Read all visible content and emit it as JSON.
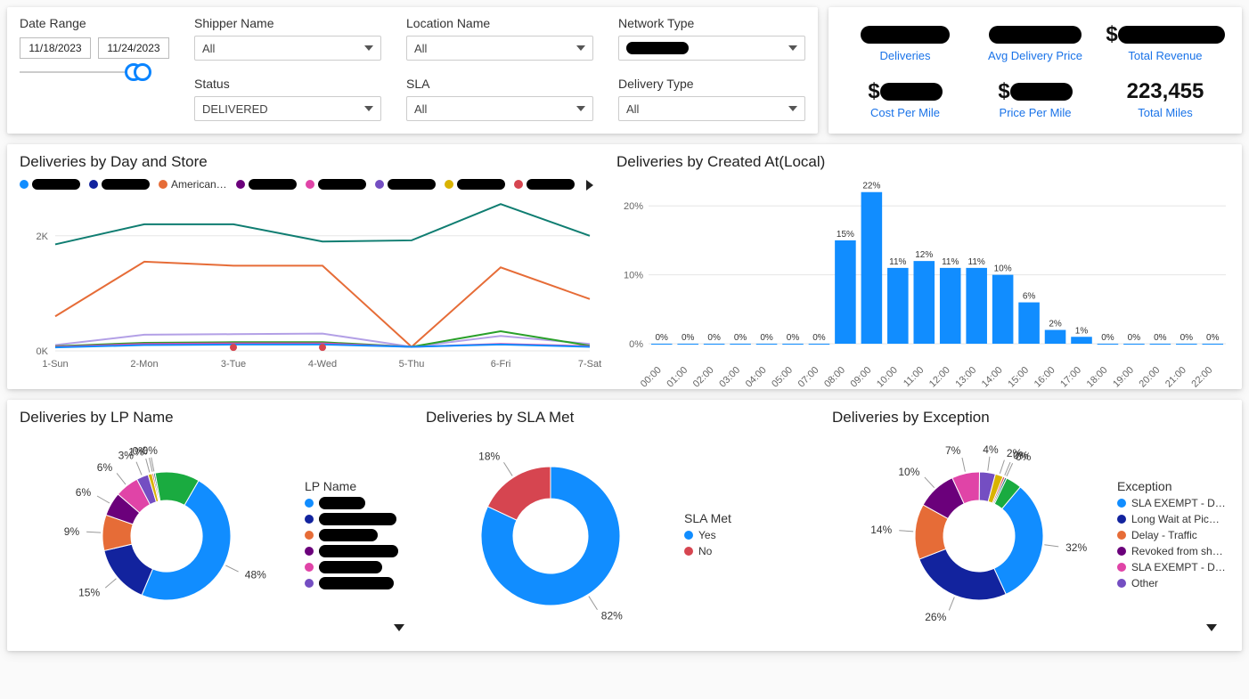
{
  "filters": {
    "dateRange": {
      "label": "Date Range",
      "start": "11/18/2023",
      "end": "11/24/2023"
    },
    "shipper": {
      "label": "Shipper Name",
      "value": "All"
    },
    "location": {
      "label": "Location Name",
      "value": "All"
    },
    "network": {
      "label": "Network Type",
      "value": "████████"
    },
    "status": {
      "label": "Status",
      "value": "DELIVERED"
    },
    "sla": {
      "label": "SLA",
      "value": "All"
    },
    "deliveryType": {
      "label": "Delivery Type",
      "value": "All"
    }
  },
  "kpis": {
    "deliveries": {
      "value": "█████",
      "label": "Deliveries"
    },
    "avgPrice": {
      "value": "█████",
      "label": "Avg Delivery Price"
    },
    "totalRevenue": {
      "value": "$████████",
      "label": "Total Revenue",
      "prefix": "$"
    },
    "costPerMile": {
      "value": "$███",
      "label": "Cost Per Mile",
      "prefix": "$"
    },
    "pricePerMile": {
      "value": "$███",
      "label": "Price Per Mile",
      "prefix": "$"
    },
    "totalMiles": {
      "value": "223,455",
      "label": "Total Miles",
      "redacted": false
    }
  },
  "byDayStore": {
    "title": "Deliveries by Day and Store",
    "categories": [
      "1-Sun",
      "2-Mon",
      "3-Tue",
      "4-Wed",
      "5-Thu",
      "6-Fri",
      "7-Sat"
    ],
    "ylim": [
      0,
      2600
    ],
    "yticks": [
      0,
      2000
    ],
    "ytick_labels": [
      "0K",
      "2K"
    ],
    "grid_color": "#e5e5e5",
    "label_fontsize": 11,
    "legend": [
      {
        "color": "#118dff",
        "label": "████████"
      },
      {
        "color": "#12239e",
        "label": "████████"
      },
      {
        "color": "#e66c37",
        "label": "American…"
      },
      {
        "color": "#6b007b",
        "label": "████████"
      },
      {
        "color": "#e044a7",
        "label": "████████"
      },
      {
        "color": "#744ec2",
        "label": "████████"
      },
      {
        "color": "#d9b300",
        "label": "████████"
      },
      {
        "color": "#d64550",
        "label": "████████"
      }
    ],
    "series": [
      {
        "color": "#0f7d71",
        "stroke_width": 2,
        "values": [
          1850,
          2200,
          2200,
          1900,
          1920,
          2550,
          2000
        ]
      },
      {
        "color": "#e66c37",
        "stroke_width": 2,
        "values": [
          600,
          1550,
          1480,
          1480,
          70,
          1450,
          900
        ]
      },
      {
        "color": "#b3a0e6",
        "stroke_width": 2,
        "values": [
          100,
          280,
          290,
          300,
          70,
          260,
          120
        ]
      },
      {
        "color": "#2aa02a",
        "stroke_width": 2,
        "values": [
          80,
          140,
          150,
          150,
          70,
          340,
          90
        ]
      },
      {
        "color": "#e044a7",
        "stroke_width": 2,
        "values": [
          70,
          120,
          130,
          130,
          70,
          120,
          80
        ]
      },
      {
        "color": "#118dff",
        "stroke_width": 2,
        "values": [
          60,
          100,
          110,
          110,
          70,
          110,
          70
        ]
      }
    ],
    "markers": [
      {
        "color": "#d64550",
        "x": 2,
        "y": 60
      },
      {
        "color": "#d64550",
        "x": 3,
        "y": 60
      }
    ]
  },
  "byCreated": {
    "title": "Deliveries by Created At(Local)",
    "ylim": [
      0,
      23
    ],
    "yticks": [
      0,
      10,
      20
    ],
    "ytick_labels": [
      "0%",
      "10%",
      "20%"
    ],
    "bar_color": "#118dff",
    "label_fontsize": 10,
    "bars": [
      {
        "x": "00:00",
        "v": 0
      },
      {
        "x": "01:00",
        "v": 0
      },
      {
        "x": "02:00",
        "v": 0
      },
      {
        "x": "03:00",
        "v": 0
      },
      {
        "x": "04:00",
        "v": 0
      },
      {
        "x": "05:00",
        "v": 0
      },
      {
        "x": "07:00",
        "v": 0
      },
      {
        "x": "08:00",
        "v": 15
      },
      {
        "x": "09:00",
        "v": 22
      },
      {
        "x": "10:00",
        "v": 11
      },
      {
        "x": "11:00",
        "v": 12
      },
      {
        "x": "12:00",
        "v": 11
      },
      {
        "x": "13:00",
        "v": 11
      },
      {
        "x": "14:00",
        "v": 10
      },
      {
        "x": "15:00",
        "v": 6
      },
      {
        "x": "16:00",
        "v": 2
      },
      {
        "x": "17:00",
        "v": 1
      },
      {
        "x": "18:00",
        "v": 0
      },
      {
        "x": "19:00",
        "v": 0
      },
      {
        "x": "20:00",
        "v": 0
      },
      {
        "x": "21:00",
        "v": 0
      },
      {
        "x": "22:00",
        "v": 0
      }
    ]
  },
  "byLP": {
    "title": "Deliveries by LP Name",
    "legend_title": "LP Name",
    "slices": [
      {
        "pct": 48,
        "color": "#118dff",
        "label": "48%"
      },
      {
        "pct": 15,
        "color": "#12239e",
        "label": "15%"
      },
      {
        "pct": 9,
        "color": "#e66c37",
        "label": "9%"
      },
      {
        "pct": 6,
        "color": "#6b007b",
        "label": "6%"
      },
      {
        "pct": 6,
        "color": "#e044a7",
        "label": "6%"
      },
      {
        "pct": 3,
        "color": "#744ec2",
        "label": "3%"
      },
      {
        "pct": 1,
        "color": "#d9b300",
        "label": "1%"
      },
      {
        "pct": 0.4,
        "color": "#d64550",
        "label": "0%"
      },
      {
        "pct": 0.4,
        "color": "#197278",
        "label": "0%"
      },
      {
        "pct": 11.2,
        "color": "#1aab40",
        "label": ""
      }
    ],
    "legend": [
      {
        "color": "#118dff"
      },
      {
        "color": "#12239e"
      },
      {
        "color": "#e66c37"
      },
      {
        "color": "#6b007b"
      },
      {
        "color": "#e044a7"
      },
      {
        "color": "#744ec2"
      }
    ]
  },
  "bySLA": {
    "title": "Deliveries by SLA Met",
    "legend_title": "SLA Met",
    "yes_label": "Yes",
    "no_label": "No",
    "slices": [
      {
        "pct": 82,
        "color": "#118dff",
        "label": "82%"
      },
      {
        "pct": 18,
        "color": "#d64550",
        "label": "18%"
      }
    ]
  },
  "byException": {
    "title": "Deliveries by Exception",
    "legend_title": "Exception",
    "slices": [
      {
        "pct": 32,
        "color": "#118dff",
        "label": "32%"
      },
      {
        "pct": 26,
        "color": "#12239e",
        "label": "26%"
      },
      {
        "pct": 14,
        "color": "#e66c37",
        "label": "14%"
      },
      {
        "pct": 10,
        "color": "#6b007b",
        "label": "10%"
      },
      {
        "pct": 7,
        "color": "#e044a7",
        "label": "7%"
      },
      {
        "pct": 4,
        "color": "#744ec2",
        "label": "4%"
      },
      {
        "pct": 2,
        "color": "#d9b300",
        "label": "2%"
      },
      {
        "pct": 0.5,
        "color": "#d64550",
        "label": "0%"
      },
      {
        "pct": 0.5,
        "color": "#197278",
        "label": "0%"
      },
      {
        "pct": 4,
        "color": "#1aab40",
        "label": ""
      }
    ],
    "legend": [
      {
        "color": "#118dff",
        "label": "SLA EXEMPT - D…"
      },
      {
        "color": "#12239e",
        "label": "Long Wait at Pic…"
      },
      {
        "color": "#e66c37",
        "label": "Delay - Traffic"
      },
      {
        "color": "#6b007b",
        "label": "Revoked from sh…"
      },
      {
        "color": "#e044a7",
        "label": "SLA EXEMPT - D…"
      },
      {
        "color": "#744ec2",
        "label": "Other"
      }
    ]
  }
}
